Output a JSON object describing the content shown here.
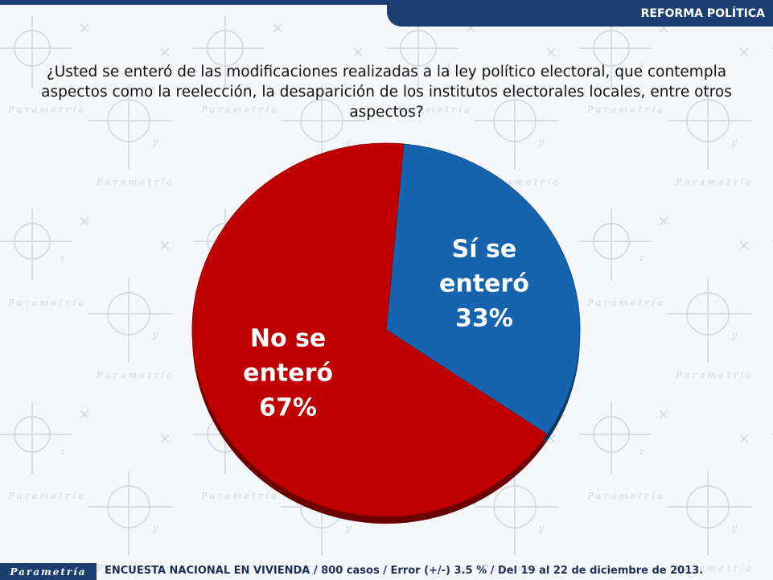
{
  "header": {
    "section": "REFORMA POLÍTICA"
  },
  "question": "¿Usted se enteró de las modificaciones realizadas a la ley político electoral, que contempla aspectos como la reelección, la desaparición de los institutos electorales locales, entre otros aspectos?",
  "chart_data": {
    "type": "pie",
    "title": "",
    "slices": [
      {
        "label_line1": "Sí se",
        "label_line2": "enteró",
        "percent_label": "33%",
        "value": 33,
        "color": "#1664b0"
      },
      {
        "label_line1": "No se",
        "label_line2": "enteró",
        "percent_label": "67%",
        "value": 67,
        "color": "#c00000"
      }
    ]
  },
  "footer": {
    "logo": "Parametría",
    "note": "ENCUESTA NACIONAL EN VIVIENDA / 800 casos / Error (+/-) 3.5 % / Del 19 al 22 de diciembre de 2013."
  },
  "colors": {
    "brand": "#1c3f73",
    "watermark": "#c9ced6"
  }
}
